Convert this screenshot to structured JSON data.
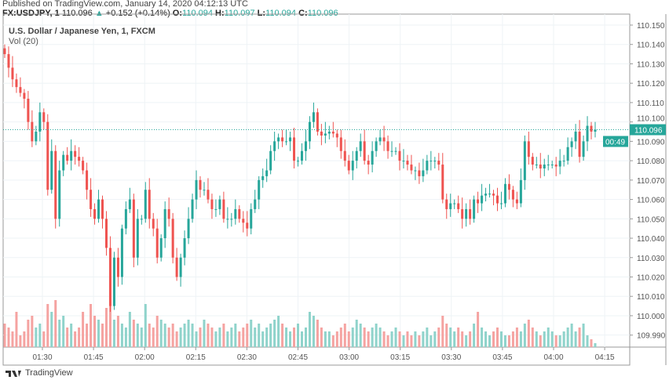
{
  "header": {
    "published": "Published on TradingView.com, January 14, 2020 04:12:13 UTC",
    "symbol": "FX:USDJPY, 1",
    "last": "110.096",
    "arrow": "▲",
    "change": "+0.152 (+0.14%)",
    "o_label": "O:",
    "o": "110.094",
    "h_label": "H:",
    "h": "110.097",
    "l_label": "L:",
    "l": "110.094",
    "c_label": "C:",
    "c": "110.096"
  },
  "legend": {
    "title": "U.S. Dollar / Japanese Yen, 1, FXCM",
    "volume": "Vol (20)"
  },
  "footer": {
    "brand": "TradingView"
  },
  "colors": {
    "up": "#26a69a",
    "down": "#ef5350",
    "up_vol": "#8fd3cb",
    "down_vol": "#f5a3a1",
    "grid": "#eef3f6"
  },
  "chart_data": {
    "type": "candlestick",
    "ylim": [
      109.985,
      110.152
    ],
    "y_ticks": [
      "110.150",
      "110.140",
      "110.130",
      "110.120",
      "110.110",
      "110.100",
      "110.090",
      "110.080",
      "110.070",
      "110.060",
      "110.050",
      "110.040",
      "110.030",
      "110.020",
      "110.010",
      "110.000",
      "109.990"
    ],
    "x_ticks": [
      "01:30",
      "01:45",
      "02:00",
      "02:15",
      "02:30",
      "02:45",
      "03:00",
      "03:15",
      "03:30",
      "03:45",
      "04:00",
      "04:15"
    ],
    "last_price_label": "110.096",
    "countdown_label": "00:49",
    "close": [
      110.135,
      110.128,
      110.122,
      110.118,
      110.115,
      110.112,
      110.1,
      110.09,
      110.095,
      110.105,
      110.1,
      110.065,
      110.085,
      110.05,
      110.075,
      110.083,
      110.08,
      110.085,
      110.082,
      110.08,
      110.075,
      110.065,
      110.055,
      110.05,
      110.06,
      110.05,
      110.035,
      110.005,
      110.03,
      110.02,
      110.045,
      110.055,
      110.06,
      110.03,
      110.05,
      110.05,
      110.065,
      110.05,
      110.045,
      110.03,
      110.04,
      110.055,
      110.05,
      110.03,
      110.02,
      110.03,
      110.04,
      110.05,
      110.06,
      110.07,
      110.065,
      110.065,
      110.06,
      110.055,
      110.055,
      110.06,
      110.05,
      110.05,
      110.05,
      110.055,
      110.05,
      110.048,
      110.045,
      110.055,
      110.06,
      110.07,
      110.072,
      110.075,
      110.085,
      110.09,
      110.092,
      110.09,
      110.09,
      110.092,
      110.08,
      110.08,
      110.085,
      110.09,
      110.1,
      110.105,
      110.095,
      110.093,
      110.094,
      110.095,
      110.094,
      110.092,
      110.085,
      110.08,
      110.075,
      110.08,
      110.085,
      110.09,
      110.08,
      110.078,
      110.085,
      110.09,
      110.092,
      110.09,
      110.085,
      110.085,
      110.085,
      110.08,
      110.08,
      110.078,
      110.075,
      110.075,
      110.072,
      110.075,
      110.08,
      110.08,
      110.08,
      110.078,
      110.06,
      110.055,
      110.058,
      110.058,
      110.055,
      110.05,
      110.055,
      110.05,
      110.06,
      110.058,
      110.062,
      110.063,
      110.063,
      110.062,
      110.058,
      110.058,
      110.068,
      110.065,
      110.06,
      110.058,
      110.07,
      110.09,
      110.082,
      110.078,
      110.078,
      110.076,
      110.078,
      110.078,
      110.078,
      110.077,
      110.08,
      110.08,
      110.087,
      110.09,
      110.095,
      110.082,
      110.09,
      110.098,
      110.095,
      110.096
    ],
    "volume": [
      30,
      25,
      20,
      45,
      15,
      20,
      35,
      40,
      25,
      30,
      20,
      55,
      45,
      60,
      35,
      40,
      25,
      30,
      20,
      25,
      45,
      30,
      55,
      40,
      35,
      30,
      50,
      90,
      35,
      40,
      30,
      25,
      45,
      35,
      30,
      25,
      55,
      30,
      25,
      40,
      35,
      30,
      25,
      30,
      20,
      25,
      30,
      35,
      30,
      20,
      25,
      35,
      30,
      25,
      20,
      25,
      30,
      20,
      25,
      30,
      20,
      25,
      30,
      35,
      25,
      30,
      20,
      25,
      30,
      35,
      40,
      30,
      25,
      20,
      25,
      30,
      20,
      25,
      45,
      40,
      35,
      25,
      20,
      20,
      15,
      20,
      25,
      30,
      20,
      25,
      35,
      30,
      25,
      20,
      25,
      30,
      25,
      20,
      15,
      20,
      25,
      20,
      15,
      20,
      15,
      20,
      15,
      20,
      25,
      15,
      20,
      25,
      40,
      30,
      25,
      20,
      25,
      20,
      15,
      20,
      30,
      45,
      25,
      20,
      15,
      20,
      25,
      20,
      15,
      15,
      20,
      25,
      20,
      30,
      35,
      25,
      20,
      15,
      20,
      25,
      20,
      15,
      15,
      20,
      25,
      30,
      20,
      25,
      30,
      15,
      10,
      5
    ]
  }
}
